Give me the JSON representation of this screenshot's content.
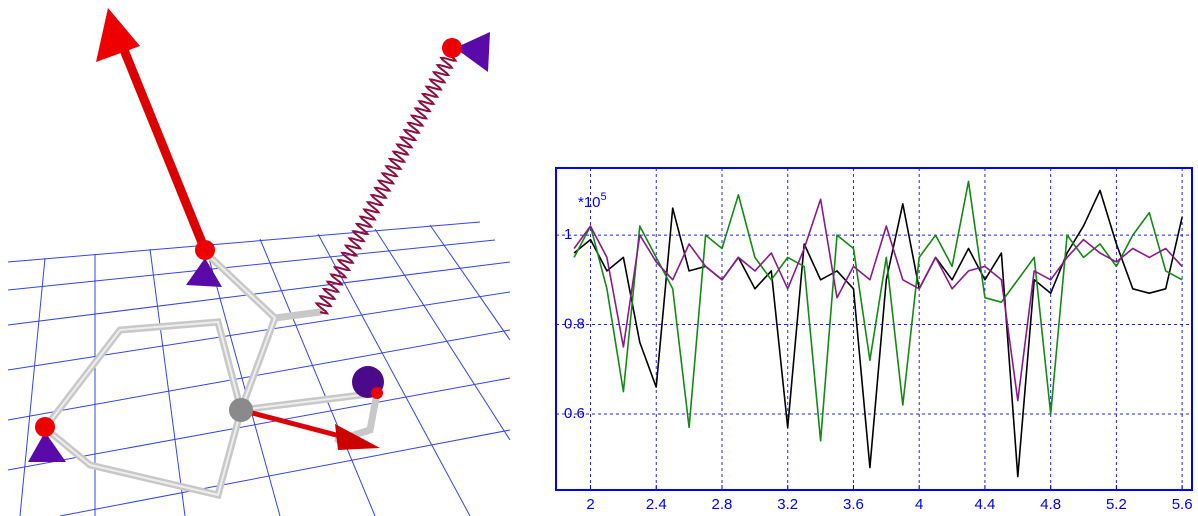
{
  "chart_data": {
    "type": "line",
    "y_multiplier": "*10",
    "y_multiplier_exponent": "5",
    "x": [
      1.9,
      2.0,
      2.1,
      2.2,
      2.3,
      2.4,
      2.5,
      2.6,
      2.7,
      2.8,
      2.9,
      3.0,
      3.1,
      3.2,
      3.3,
      3.4,
      3.5,
      3.6,
      3.7,
      3.8,
      3.9,
      4.0,
      4.1,
      4.2,
      4.3,
      4.4,
      4.5,
      4.6,
      4.7,
      4.8,
      4.9,
      5.0,
      5.1,
      5.2,
      5.3,
      5.4,
      5.5,
      5.6
    ],
    "series": [
      {
        "color": "#000000",
        "values": [
          0.96,
          0.99,
          0.92,
          0.95,
          0.76,
          0.66,
          1.06,
          0.92,
          0.93,
          0.9,
          0.95,
          0.88,
          0.92,
          0.57,
          0.98,
          0.9,
          0.92,
          0.88,
          0.48,
          0.9,
          1.07,
          0.88,
          0.95,
          0.9,
          0.97,
          0.9,
          0.96,
          0.46,
          0.9,
          0.87,
          0.96,
          1.02,
          1.1,
          0.98,
          0.88,
          0.87,
          0.88,
          1.04
        ]
      },
      {
        "color": "#138a13",
        "values": [
          0.95,
          1.02,
          0.88,
          0.65,
          1.02,
          0.95,
          0.88,
          0.57,
          1.0,
          0.97,
          1.09,
          0.95,
          0.9,
          0.95,
          0.93,
          0.54,
          1.0,
          0.97,
          0.72,
          0.95,
          0.62,
          0.95,
          1.0,
          0.93,
          1.12,
          0.86,
          0.85,
          0.9,
          0.95,
          0.6,
          1.0,
          0.95,
          0.98,
          0.93,
          1.0,
          1.05,
          0.92,
          0.9
        ]
      },
      {
        "color": "#8a1a8a",
        "values": [
          0.97,
          1.02,
          0.95,
          0.75,
          1.0,
          0.94,
          0.9,
          0.98,
          0.93,
          0.9,
          0.95,
          0.92,
          0.96,
          0.88,
          0.97,
          1.08,
          0.86,
          0.93,
          0.9,
          1.02,
          0.9,
          0.88,
          0.95,
          0.88,
          0.92,
          0.93,
          0.9,
          0.63,
          0.92,
          0.9,
          0.95,
          0.99,
          0.96,
          0.94,
          0.97,
          0.95,
          0.97,
          0.93
        ]
      }
    ],
    "xlim": [
      1.79,
      5.66
    ],
    "ylim": [
      0.43,
      1.15
    ],
    "xticks": [
      2,
      2.4,
      2.8,
      3.2,
      3.6,
      4,
      4.4,
      4.8,
      5.2,
      5.6
    ],
    "yticks": [
      0.6,
      0.8,
      1
    ],
    "grid": true,
    "frame_color": "#0000ff",
    "grid_color": "#2222ee"
  }
}
